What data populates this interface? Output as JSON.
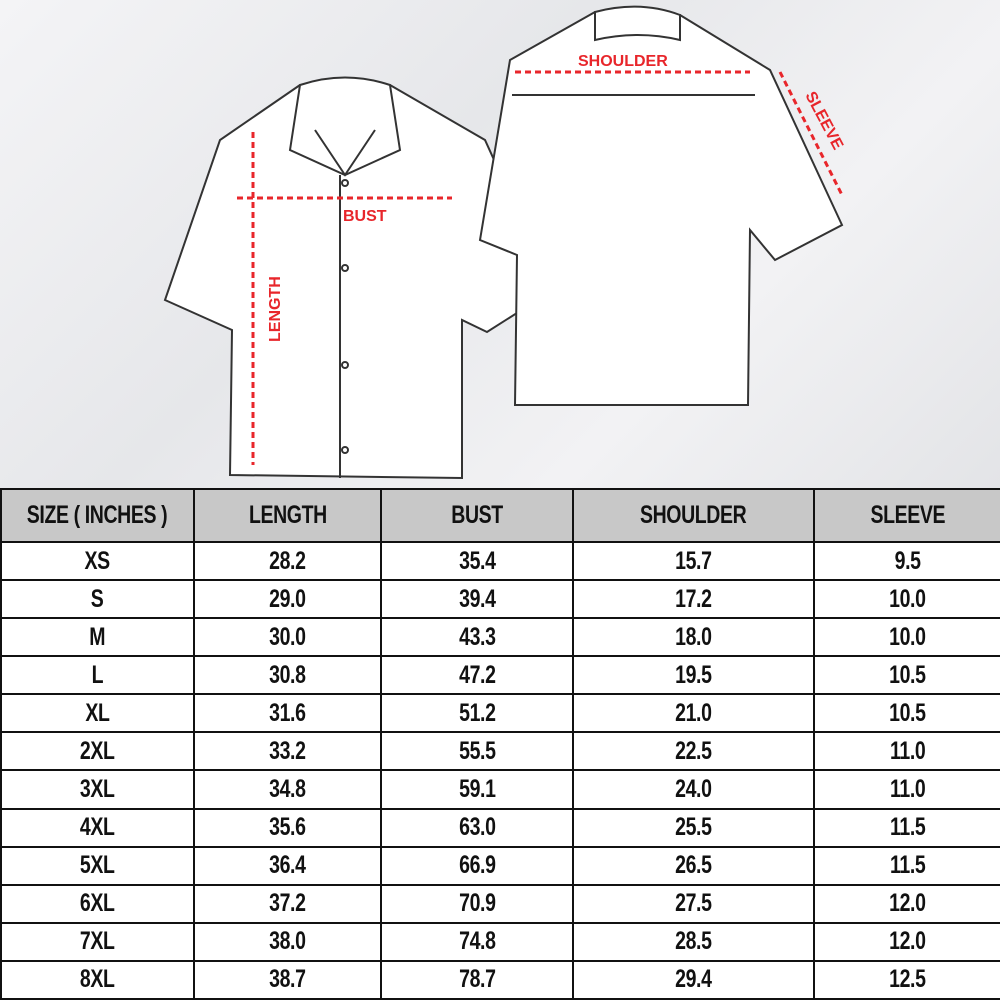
{
  "diagram": {
    "labels": {
      "bust": "BUST",
      "length": "LENGTH",
      "shoulder": "SHOULDER",
      "sleeve": "SLEEVE"
    },
    "arrow_color": "#e8262b"
  },
  "table": {
    "headers": [
      "SIZE ( INCHES )",
      "LENGTH",
      "BUST",
      "SHOULDER",
      "SLEEVE"
    ],
    "rows": [
      [
        "XS",
        "28.2",
        "35.4",
        "15.7",
        "9.5"
      ],
      [
        "S",
        "29.0",
        "39.4",
        "17.2",
        "10.0"
      ],
      [
        "M",
        "30.0",
        "43.3",
        "18.0",
        "10.0"
      ],
      [
        "L",
        "30.8",
        "47.2",
        "19.5",
        "10.5"
      ],
      [
        "XL",
        "31.6",
        "51.2",
        "21.0",
        "10.5"
      ],
      [
        "2XL",
        "33.2",
        "55.5",
        "22.5",
        "11.0"
      ],
      [
        "3XL",
        "34.8",
        "59.1",
        "24.0",
        "11.0"
      ],
      [
        "4XL",
        "35.6",
        "63.0",
        "25.5",
        "11.5"
      ],
      [
        "5XL",
        "36.4",
        "66.9",
        "26.5",
        "11.5"
      ],
      [
        "6XL",
        "37.2",
        "70.9",
        "27.5",
        "12.0"
      ],
      [
        "7XL",
        "38.0",
        "74.8",
        "28.5",
        "12.0"
      ],
      [
        "8XL",
        "38.7",
        "78.7",
        "29.4",
        "12.5"
      ]
    ]
  }
}
